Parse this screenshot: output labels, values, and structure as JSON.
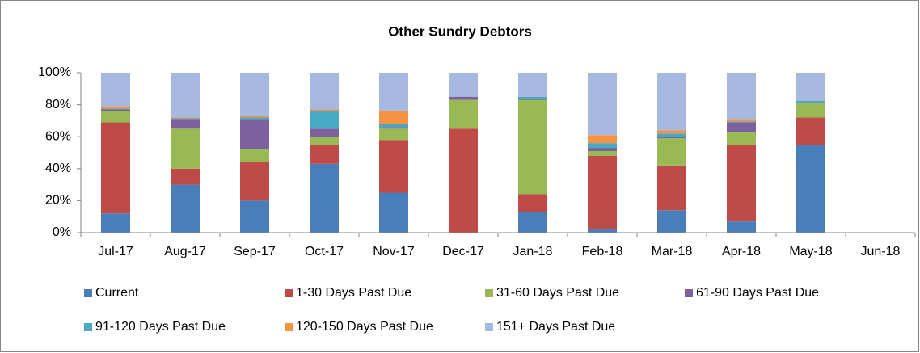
{
  "chart_data": {
    "type": "bar",
    "stacked": true,
    "title": "Other Sundry Debtors",
    "categories": [
      "Jul-17",
      "Aug-17",
      "Sep-17",
      "Oct-17",
      "Nov-17",
      "Dec-17",
      "Jan-18",
      "Feb-18",
      "Mar-18",
      "Apr-18",
      "May-18",
      "Jun-18"
    ],
    "series": [
      {
        "name": "Current",
        "color": "#4a7ebb",
        "values": [
          12,
          30,
          20,
          43,
          25,
          0,
          13,
          2,
          14,
          7,
          55,
          null
        ]
      },
      {
        "name": "1-30 Days Past Due",
        "color": "#be4b48",
        "values": [
          57,
          10,
          24,
          12,
          33,
          65,
          11,
          46,
          28,
          48,
          17,
          null
        ]
      },
      {
        "name": "31-60 Days Past Due",
        "color": "#98b954",
        "values": [
          7,
          25,
          8,
          5,
          7,
          18,
          59,
          3,
          17,
          8,
          9,
          null
        ]
      },
      {
        "name": "61-90 Days Past Due",
        "color": "#7d60a0",
        "values": [
          1,
          6,
          19,
          5,
          1,
          2,
          0.5,
          2,
          1,
          6,
          0.5,
          null
        ]
      },
      {
        "name": "91-120 Days Past Due",
        "color": "#46aac5",
        "values": [
          0.5,
          0.5,
          1,
          11,
          2,
          0,
          1.5,
          3,
          2,
          0.5,
          1,
          null
        ]
      },
      {
        "name": "120-150 Days Past Due",
        "color": "#f69240",
        "values": [
          1.5,
          0.5,
          1,
          1,
          8,
          0,
          0,
          5,
          2,
          1.5,
          0,
          null
        ]
      },
      {
        "name": "151+ Days Past Due",
        "color": "#a7b9e0",
        "values": [
          21,
          28,
          27,
          23,
          24,
          15,
          15,
          39,
          36,
          29,
          17.5,
          null
        ]
      }
    ],
    "ylim": [
      0,
      100
    ],
    "yticks": [
      {
        "value": 0,
        "label": "0%"
      },
      {
        "value": 20,
        "label": "20%"
      },
      {
        "value": 40,
        "label": "40%"
      },
      {
        "value": 60,
        "label": "60%"
      },
      {
        "value": 80,
        "label": "80%"
      },
      {
        "value": 100,
        "label": "100%"
      }
    ],
    "grid": false,
    "legend": "bottom"
  }
}
